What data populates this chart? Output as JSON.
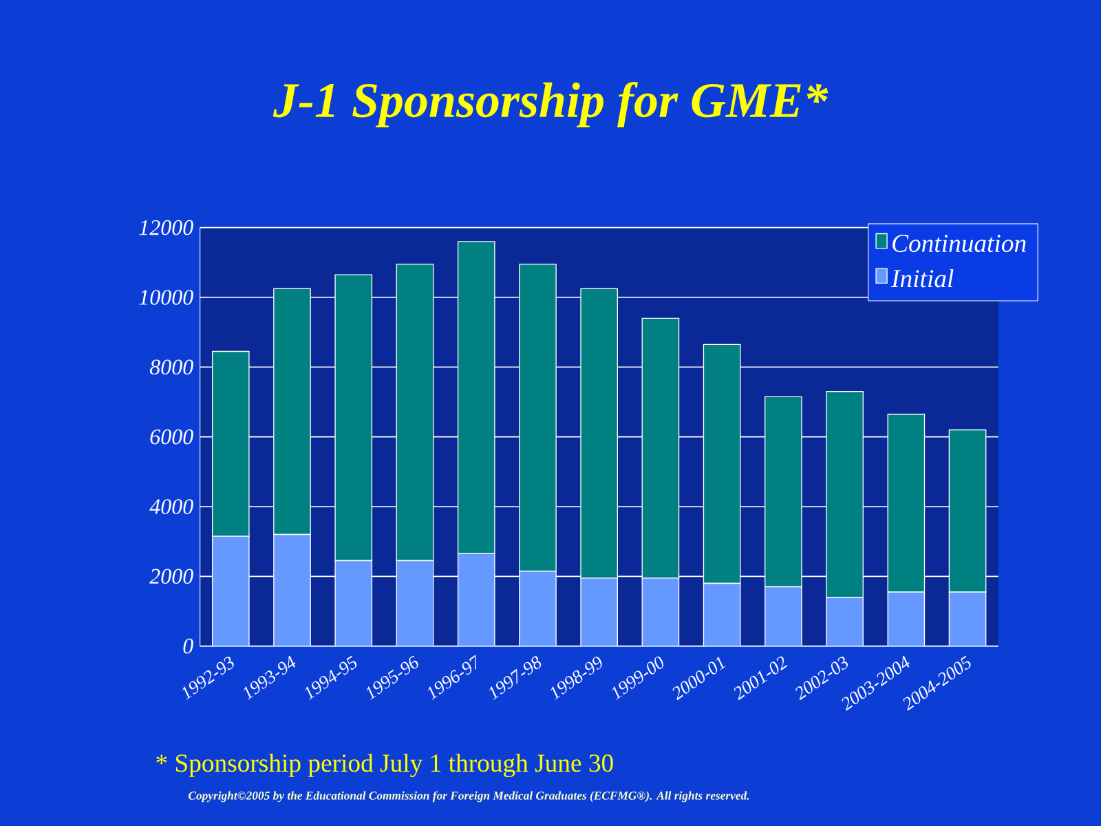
{
  "chart_data": {
    "type": "bar",
    "title": "J-1 Sponsorship for GME*",
    "categories": [
      "1992-93",
      "1993-94",
      "1994-95",
      "1995-96",
      "1996-97",
      "1997-98",
      "1998-99",
      "1999-00",
      "2000-01",
      "2001-02",
      "2002-03",
      "2003-2004",
      "2004-2005"
    ],
    "series": [
      {
        "name": "Initial",
        "color": "#6699ff",
        "values": [
          3150,
          3200,
          2450,
          2450,
          2650,
          2150,
          1950,
          1950,
          1800,
          1700,
          1400,
          1550,
          1550
        ]
      },
      {
        "name": "Continuation",
        "color": "#008080",
        "values": [
          5300,
          7050,
          8200,
          8500,
          8950,
          8800,
          8300,
          7450,
          6850,
          5450,
          5900,
          5100,
          4650
        ]
      }
    ],
    "stacked": true,
    "ylim": [
      0,
      12000
    ],
    "yticks": [
      0,
      2000,
      4000,
      6000,
      8000,
      10000,
      12000
    ],
    "grid": "y",
    "legend": "top right",
    "annotations": [
      "* Sponsorship period July 1 through June 30",
      "Copyright©2005 by the Educational Commission for Foreign Medical Graduates (ECFMG®). All rights reserved."
    ]
  }
}
